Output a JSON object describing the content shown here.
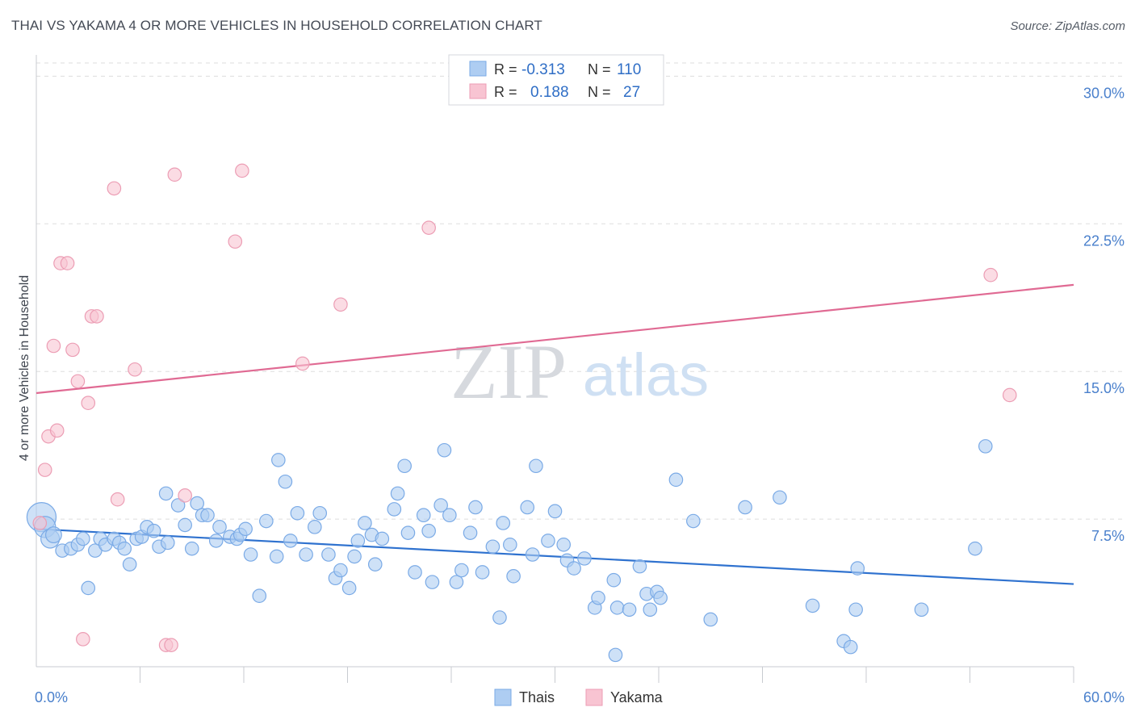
{
  "title": "THAI VS YAKAMA 4 OR MORE VEHICLES IN HOUSEHOLD CORRELATION CHART",
  "source": "Source: ZipAtlas.com",
  "watermark": {
    "zip": "ZIP",
    "atlas": "atlas"
  },
  "colors": {
    "blue_fill": "#aecdf2",
    "blue_stroke": "#7aaae6",
    "blue_line": "#2f72cf",
    "pink_fill": "#f8c4d2",
    "pink_stroke": "#ec9db4",
    "pink_line": "#e06a93",
    "tick_label": "#4a80cc",
    "grid": "#dddddd"
  },
  "legend": {
    "rows": [
      {
        "r_label": "R =",
        "r_value": "-0.313",
        "n_label": "N =",
        "n_value": "110",
        "series": "blue"
      },
      {
        "r_label": "R =",
        "r_value": "0.188",
        "n_label": "N =",
        "n_value": "27",
        "series": "pink"
      }
    ]
  },
  "chart_data": {
    "type": "scatter",
    "title": "THAI VS YAKAMA 4 OR MORE VEHICLES IN HOUSEHOLD CORRELATION CHART",
    "xlabel": "",
    "ylabel": "4 or more Vehicles in Household",
    "xlim": [
      0,
      60
    ],
    "ylim": [
      0,
      31
    ],
    "x_tick_labels": [
      {
        "value": 0,
        "label": "0.0%"
      },
      {
        "value": 60,
        "label": "60.0%"
      }
    ],
    "y_ticks": [
      {
        "value": 7.5,
        "label": "7.5%"
      },
      {
        "value": 15,
        "label": "15.0%"
      },
      {
        "value": 22.5,
        "label": "22.5%"
      },
      {
        "value": 30,
        "label": "30.0%"
      }
    ],
    "x_minor_ticks": [
      6,
      12,
      18,
      24,
      30,
      36,
      42,
      48,
      54,
      60
    ],
    "grid": true,
    "legend_position": "bottom-center",
    "series": [
      {
        "name": "Thais",
        "color": "blue",
        "trend": {
          "x": [
            0,
            60
          ],
          "y": [
            7.0,
            4.2
          ]
        },
        "points": [
          [
            0.3,
            7.6,
            22
          ],
          [
            0.5,
            7.1,
            16
          ],
          [
            0.8,
            6.5,
            14
          ],
          [
            1.0,
            6.7,
            12
          ],
          [
            1.5,
            5.9,
            10
          ],
          [
            2.0,
            6.0,
            10
          ],
          [
            2.4,
            6.2,
            10
          ],
          [
            2.7,
            6.5,
            10
          ],
          [
            3.0,
            4.0,
            10
          ],
          [
            3.4,
            5.9,
            10
          ],
          [
            3.7,
            6.5,
            10
          ],
          [
            4.0,
            6.2,
            10
          ],
          [
            4.5,
            6.5,
            10
          ],
          [
            4.8,
            6.3,
            10
          ],
          [
            5.1,
            6.0,
            10
          ],
          [
            5.4,
            5.2,
            10
          ],
          [
            5.8,
            6.5,
            10
          ],
          [
            6.1,
            6.6,
            10
          ],
          [
            6.4,
            7.1,
            10
          ],
          [
            6.8,
            6.9,
            10
          ],
          [
            7.1,
            6.1,
            10
          ],
          [
            7.6,
            6.3,
            10
          ],
          [
            7.5,
            8.8,
            10
          ],
          [
            8.2,
            8.2,
            10
          ],
          [
            8.6,
            7.2,
            10
          ],
          [
            9.0,
            6.0,
            10
          ],
          [
            9.3,
            8.3,
            10
          ],
          [
            9.6,
            7.7,
            10
          ],
          [
            9.9,
            7.7,
            10
          ],
          [
            10.6,
            7.1,
            10
          ],
          [
            10.4,
            6.4,
            10
          ],
          [
            11.2,
            6.6,
            10
          ],
          [
            11.6,
            6.5,
            10
          ],
          [
            11.8,
            6.7,
            10
          ],
          [
            12.1,
            7.0,
            10
          ],
          [
            12.4,
            5.7,
            10
          ],
          [
            12.9,
            3.6,
            10
          ],
          [
            13.3,
            7.4,
            10
          ],
          [
            13.9,
            5.6,
            10
          ],
          [
            14.0,
            10.5,
            10
          ],
          [
            14.4,
            9.4,
            10
          ],
          [
            14.7,
            6.4,
            10
          ],
          [
            15.1,
            7.8,
            10
          ],
          [
            15.6,
            5.7,
            10
          ],
          [
            16.1,
            7.1,
            10
          ],
          [
            16.4,
            7.8,
            10
          ],
          [
            16.9,
            5.7,
            10
          ],
          [
            17.3,
            4.5,
            10
          ],
          [
            17.6,
            4.9,
            10
          ],
          [
            18.1,
            4.0,
            10
          ],
          [
            18.4,
            5.6,
            10
          ],
          [
            18.6,
            6.4,
            10
          ],
          [
            19.0,
            7.3,
            10
          ],
          [
            19.4,
            6.7,
            10
          ],
          [
            19.6,
            5.2,
            10
          ],
          [
            20.0,
            6.5,
            10
          ],
          [
            20.7,
            8.0,
            10
          ],
          [
            20.9,
            8.8,
            10
          ],
          [
            21.3,
            10.2,
            10
          ],
          [
            21.5,
            6.8,
            10
          ],
          [
            21.9,
            4.8,
            10
          ],
          [
            22.4,
            7.7,
            10
          ],
          [
            22.7,
            6.9,
            10
          ],
          [
            22.9,
            4.3,
            10
          ],
          [
            23.4,
            8.2,
            10
          ],
          [
            23.6,
            11.0,
            10
          ],
          [
            23.9,
            7.7,
            10
          ],
          [
            24.3,
            4.3,
            10
          ],
          [
            24.6,
            4.9,
            10
          ],
          [
            25.1,
            6.8,
            10
          ],
          [
            25.4,
            8.1,
            10
          ],
          [
            25.8,
            4.8,
            10
          ],
          [
            26.4,
            6.1,
            10
          ],
          [
            26.8,
            2.5,
            10
          ],
          [
            27.0,
            7.3,
            10
          ],
          [
            27.4,
            6.2,
            10
          ],
          [
            27.6,
            4.6,
            10
          ],
          [
            28.4,
            8.1,
            10
          ],
          [
            28.7,
            5.7,
            10
          ],
          [
            28.9,
            10.2,
            10
          ],
          [
            29.6,
            6.4,
            10
          ],
          [
            30.0,
            7.9,
            10
          ],
          [
            30.5,
            6.2,
            10
          ],
          [
            30.7,
            5.4,
            10
          ],
          [
            31.1,
            5.0,
            10
          ],
          [
            31.7,
            5.5,
            10
          ],
          [
            32.3,
            3.0,
            10
          ],
          [
            32.5,
            3.5,
            10
          ],
          [
            33.4,
            4.4,
            10
          ],
          [
            33.6,
            3.0,
            10
          ],
          [
            34.3,
            2.9,
            10
          ],
          [
            34.9,
            5.1,
            10
          ],
          [
            35.3,
            3.7,
            10
          ],
          [
            35.5,
            2.9,
            10
          ],
          [
            35.9,
            3.8,
            10
          ],
          [
            36.1,
            3.5,
            10
          ],
          [
            37.0,
            9.5,
            10
          ],
          [
            38.0,
            7.4,
            10
          ],
          [
            39.0,
            2.4,
            10
          ],
          [
            41.0,
            8.1,
            10
          ],
          [
            43.0,
            8.6,
            10
          ],
          [
            44.9,
            3.1,
            10
          ],
          [
            46.7,
            1.3,
            10
          ],
          [
            47.1,
            1.0,
            10
          ],
          [
            47.4,
            2.9,
            10
          ],
          [
            47.5,
            5.0,
            10
          ],
          [
            51.2,
            2.9,
            10
          ],
          [
            54.3,
            6.0,
            10
          ],
          [
            54.9,
            11.2,
            10
          ],
          [
            33.5,
            0.6,
            10
          ]
        ]
      },
      {
        "name": "Yakama",
        "color": "pink",
        "trend": {
          "x": [
            0,
            60
          ],
          "y": [
            13.9,
            19.4
          ]
        },
        "points": [
          [
            0.2,
            7.3,
            10
          ],
          [
            0.5,
            10.0,
            10
          ],
          [
            0.7,
            11.7,
            10
          ],
          [
            1.0,
            16.3,
            10
          ],
          [
            1.2,
            12.0,
            10
          ],
          [
            1.4,
            20.5,
            10
          ],
          [
            1.8,
            20.5,
            10
          ],
          [
            2.1,
            16.1,
            10
          ],
          [
            2.4,
            14.5,
            10
          ],
          [
            2.7,
            1.4,
            10
          ],
          [
            3.0,
            13.4,
            10
          ],
          [
            3.2,
            17.8,
            10
          ],
          [
            3.5,
            17.8,
            10
          ],
          [
            4.5,
            24.3,
            10
          ],
          [
            4.7,
            8.5,
            10
          ],
          [
            5.7,
            15.1,
            10
          ],
          [
            7.5,
            1.1,
            10
          ],
          [
            7.8,
            1.1,
            10
          ],
          [
            8.0,
            25.0,
            10
          ],
          [
            8.6,
            8.7,
            10
          ],
          [
            11.5,
            21.6,
            10
          ],
          [
            11.9,
            25.2,
            10
          ],
          [
            15.4,
            15.4,
            10
          ],
          [
            17.6,
            18.4,
            10
          ],
          [
            22.7,
            22.3,
            10
          ],
          [
            55.2,
            19.9,
            10
          ],
          [
            56.3,
            13.8,
            10
          ]
        ]
      }
    ]
  },
  "bottom_legend": [
    {
      "label": "Thais",
      "series": "blue"
    },
    {
      "label": "Yakama",
      "series": "pink"
    }
  ]
}
